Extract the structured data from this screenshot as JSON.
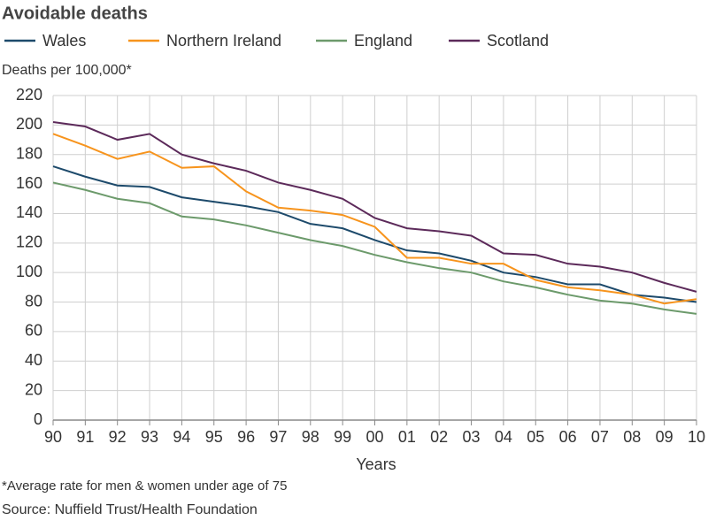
{
  "chart_data": {
    "type": "line",
    "title": "Avoidable deaths",
    "y_label": "Deaths per 100,000*",
    "x_label": "Years",
    "footnote": "*Average rate for men & women under age of 75",
    "source": "Source: Nuffield Trust/Health Foundation",
    "categories": [
      "90",
      "91",
      "92",
      "93",
      "94",
      "95",
      "96",
      "97",
      "98",
      "99",
      "00",
      "01",
      "02",
      "03",
      "04",
      "05",
      "06",
      "07",
      "08",
      "09",
      "10"
    ],
    "series": [
      {
        "name": "Wales",
        "color": "#1d4a6b",
        "values": [
          172,
          165,
          159,
          158,
          151,
          148,
          145,
          141,
          133,
          130,
          122,
          115,
          113,
          108,
          100,
          97,
          92,
          92,
          85,
          83,
          80
        ]
      },
      {
        "name": "Northern Ireland",
        "color": "#f7941d",
        "values": [
          194,
          186,
          177,
          182,
          171,
          172,
          155,
          144,
          142,
          139,
          131,
          110,
          110,
          106,
          106,
          95,
          90,
          88,
          85,
          79,
          82
        ]
      },
      {
        "name": "England",
        "color": "#6c9a6b",
        "values": [
          161,
          156,
          150,
          147,
          138,
          136,
          132,
          127,
          122,
          118,
          112,
          107,
          103,
          100,
          94,
          90,
          85,
          81,
          79,
          75,
          72
        ]
      },
      {
        "name": "Scotland",
        "color": "#5c2a5a",
        "values": [
          202,
          199,
          190,
          194,
          180,
          174,
          169,
          161,
          156,
          150,
          137,
          130,
          128,
          125,
          113,
          112,
          106,
          104,
          100,
          93,
          87
        ]
      }
    ],
    "ylim": [
      0,
      220
    ],
    "yticks": [
      0,
      20,
      40,
      60,
      80,
      100,
      120,
      140,
      160,
      180,
      200,
      220
    ],
    "grid": true
  }
}
